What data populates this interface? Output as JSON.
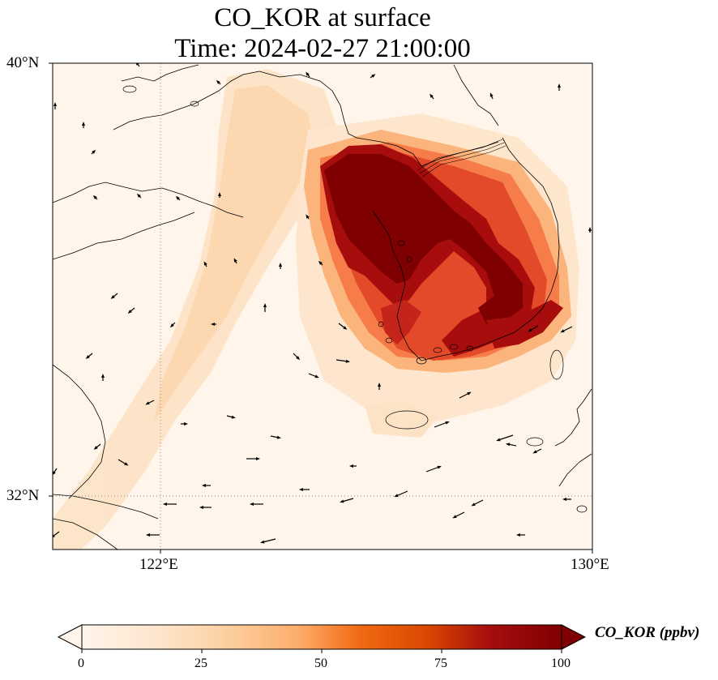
{
  "title": {
    "line1": "CO_KOR at surface",
    "line2": "Time: 2024-02-27 21:00:00"
  },
  "map": {
    "variable": "CO_KOR",
    "lon_range": [
      120,
      130
    ],
    "lat_range": [
      31,
      40
    ],
    "lat_ticks": [
      {
        "value": 40,
        "label": "40°N"
      },
      {
        "value": 32,
        "label": "32°N"
      }
    ],
    "lon_ticks": [
      {
        "value": 122,
        "label": "122°E"
      },
      {
        "value": 130,
        "label": "130°E"
      }
    ],
    "gridlines": "dotted at 122°E and 32°N",
    "background_color": "#fff5eb",
    "plume_colors": [
      "#fdd9b4",
      "#fdab6b",
      "#e8552a",
      "#b10a0f",
      "#7f0000"
    ],
    "wind_arrows": "black quiver arrows"
  },
  "colorbar": {
    "label": "CO_KOR (ppbv)",
    "ticks": [
      "0",
      "25",
      "50",
      "75",
      "100"
    ],
    "min": 0,
    "max": 100,
    "extend": "both",
    "colormap": [
      "#fff5eb",
      "#fee6ce",
      "#fdd0a2",
      "#fdae6b",
      "#fd8d3c",
      "#f16913",
      "#d94801",
      "#a60d0d",
      "#7f0000"
    ]
  }
}
